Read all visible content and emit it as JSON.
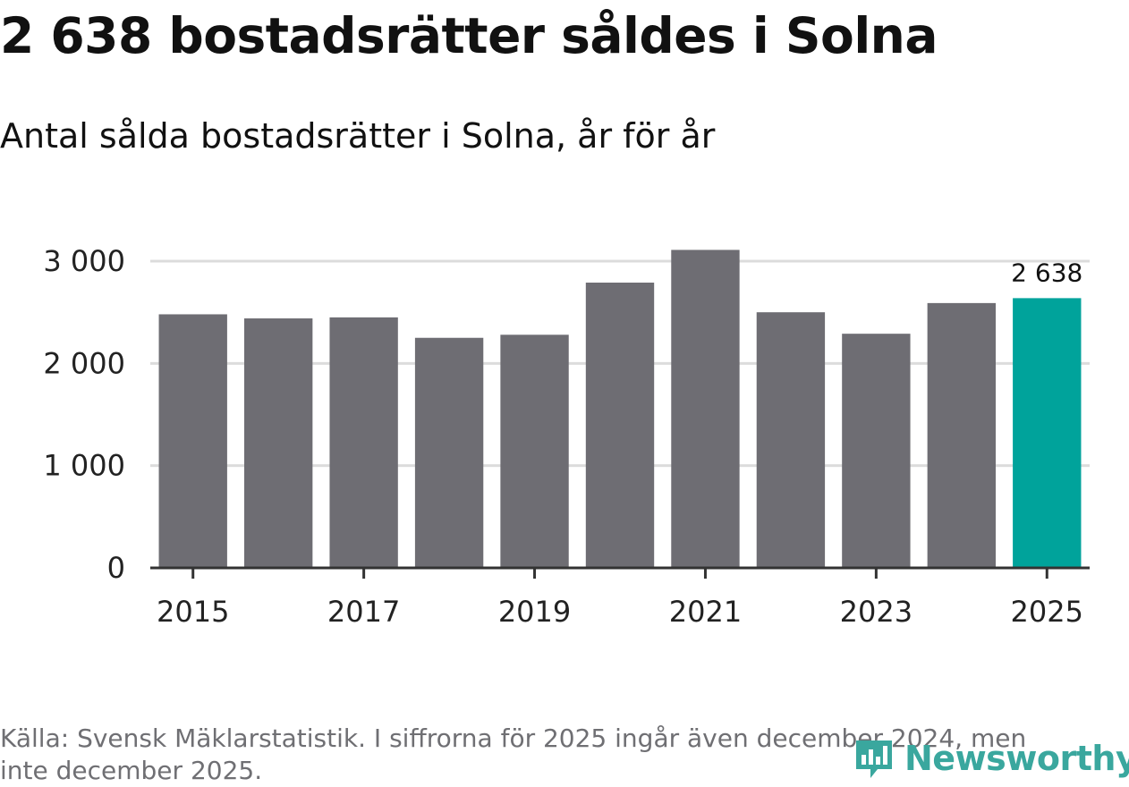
{
  "title": "2 638 bostadsrätter såldes i Solna",
  "subtitle": "Antal sålda bostadsrätter i Solna, år för år",
  "source": "Källa: Svensk Mäklarstatistik. I siffrorna för 2025 ingår även december 2024, men inte december 2025.",
  "logo": {
    "text": "Newsworthy",
    "icon": "newsworthy-logo-icon"
  },
  "colors": {
    "bar": "#6e6d73",
    "highlight": "#00a39b",
    "grid": "#dcdcdc",
    "axis": "#333333",
    "text": "#222222"
  },
  "chart_data": {
    "type": "bar",
    "title": "2 638 bostadsrätter såldes i Solna",
    "subtitle": "Antal sålda bostadsrätter i Solna, år för år",
    "xlabel": "",
    "ylabel": "",
    "categories": [
      "2015",
      "2016",
      "2017",
      "2018",
      "2019",
      "2020",
      "2021",
      "2022",
      "2023",
      "2024",
      "2025"
    ],
    "values": [
      2480,
      2440,
      2450,
      2250,
      2280,
      2790,
      3110,
      2500,
      2290,
      2590,
      2638
    ],
    "highlight_index": 10,
    "highlight_label": "2 638",
    "ylim": [
      0,
      3000
    ],
    "yticks": [
      0,
      1000,
      2000,
      3000
    ],
    "ytick_labels": [
      "0",
      "1 000",
      "2 000",
      "3 000"
    ],
    "xtick_labels": [
      "2015",
      "2017",
      "2019",
      "2021",
      "2023",
      "2025"
    ],
    "grid": true
  }
}
